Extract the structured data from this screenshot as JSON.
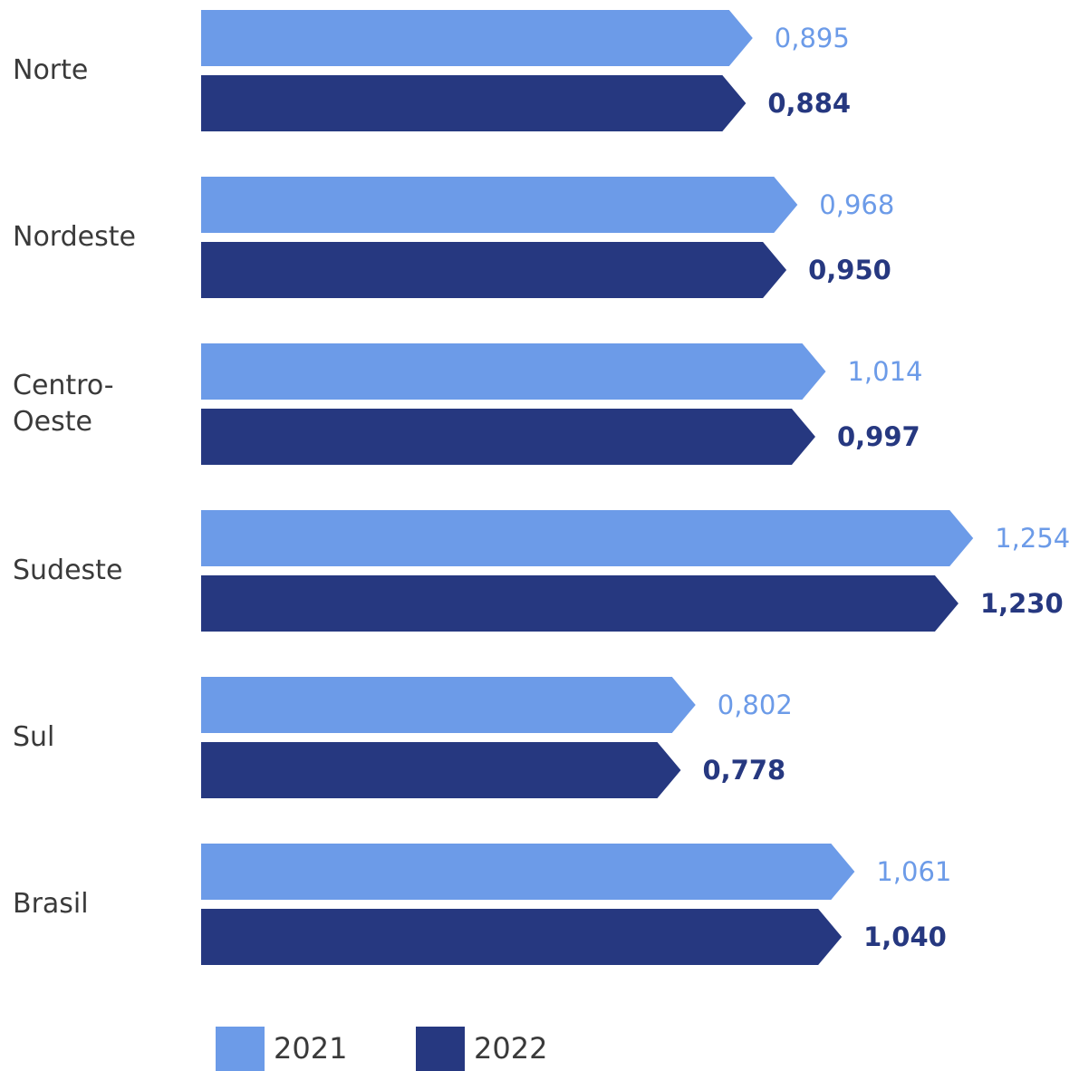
{
  "chart_data": {
    "type": "bar",
    "orientation": "horizontal",
    "categories": [
      "Norte",
      "Nordeste",
      "Centro-\nOeste",
      "Sudeste",
      "Sul",
      "Brasil"
    ],
    "series": [
      {
        "name": "2021",
        "color": "#6c9be8",
        "values": [
          0.895,
          0.968,
          1.014,
          1.254,
          0.802,
          1.061
        ],
        "labels": [
          "0,895",
          "0,968",
          "1,014",
          "1,254",
          "0,802",
          "1,061"
        ]
      },
      {
        "name": "2022",
        "color": "#263880",
        "values": [
          0.884,
          0.95,
          0.997,
          1.23,
          0.778,
          1.04
        ],
        "labels": [
          "0,884",
          "0,950",
          "0,997",
          "1,230",
          "0,778",
          "1,040"
        ]
      }
    ],
    "legend_position": "bottom",
    "grid": false,
    "bar_shape": "arrow"
  },
  "legend": {
    "items": [
      {
        "label": "2021",
        "color": "#6c9be8"
      },
      {
        "label": "2022",
        "color": "#263880"
      }
    ]
  }
}
